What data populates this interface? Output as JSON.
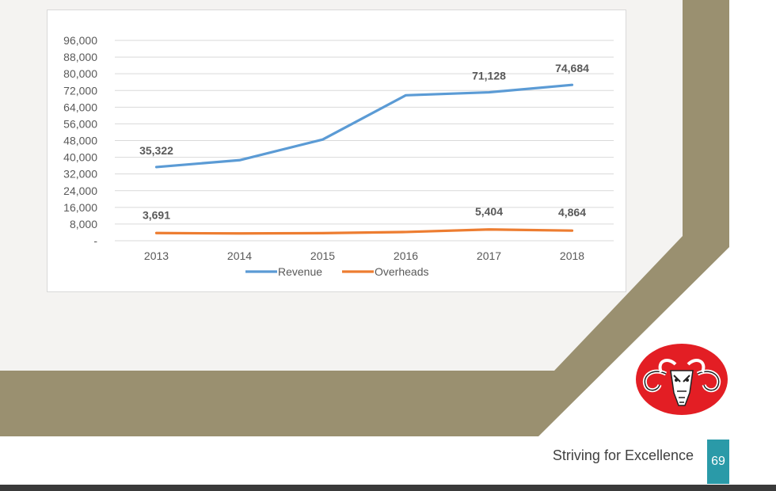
{
  "chart_data": {
    "type": "line",
    "categories": [
      "2013",
      "2014",
      "2015",
      "2016",
      "2017",
      "2018"
    ],
    "series": [
      {
        "name": "Revenue",
        "color": "#5b9bd5",
        "values": [
          35322,
          38600,
          48500,
          69700,
          71128,
          74684
        ],
        "labels": [
          {
            "index": 0,
            "text": "35,322"
          },
          {
            "index": 4,
            "text": "71,128"
          },
          {
            "index": 5,
            "text": "74,684"
          }
        ]
      },
      {
        "name": "Overheads",
        "color": "#ed7d31",
        "values": [
          3691,
          3500,
          3650,
          4200,
          5404,
          4864
        ],
        "labels": [
          {
            "index": 0,
            "text": "3,691"
          },
          {
            "index": 4,
            "text": "5,404"
          },
          {
            "index": 5,
            "text": "4,864"
          }
        ]
      }
    ],
    "yticks": [
      "-",
      "8,000",
      "16,000",
      "24,000",
      "32,000",
      "40,000",
      "48,000",
      "56,000",
      "64,000",
      "72,000",
      "80,000",
      "88,000",
      "96,000"
    ],
    "ytick_values": [
      0,
      8000,
      16000,
      24000,
      32000,
      40000,
      48000,
      56000,
      64000,
      72000,
      80000,
      88000,
      96000
    ],
    "ylim": [
      0,
      96000
    ],
    "grid": true,
    "legend": "bottom",
    "title": "",
    "xlabel": "",
    "ylabel": ""
  },
  "footer": {
    "tagline": "Striving for Excellence",
    "page_number": "69"
  },
  "colors": {
    "frame_band": "#9a9070",
    "page_bg": "#f4f3f1",
    "accent_teal": "#2a9aa8",
    "logo_red": "#e31e24"
  },
  "logo": {
    "icon": "ram-head-icon"
  }
}
